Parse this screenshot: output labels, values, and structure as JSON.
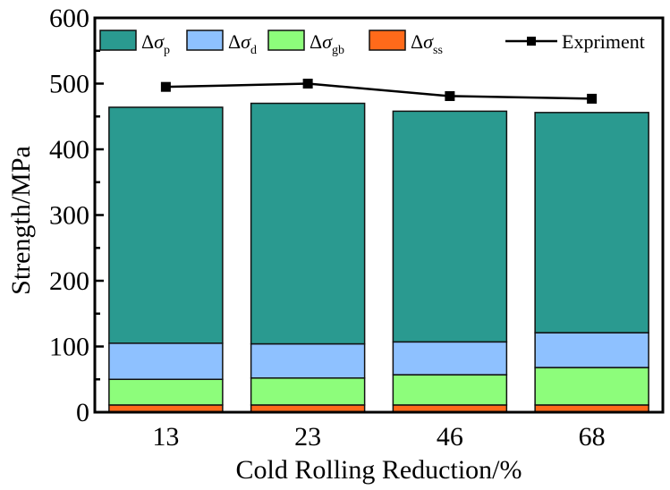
{
  "chart_data": {
    "type": "bar",
    "stacked": true,
    "title": "",
    "xlabel": "Cold Rolling Reduction/%",
    "ylabel": "Strength/MPa",
    "ylim": [
      0,
      600
    ],
    "yticks": [
      0,
      100,
      200,
      300,
      400,
      500,
      600
    ],
    "yticks_minor_step": 50,
    "categories": [
      "13",
      "23",
      "46",
      "68"
    ],
    "series": [
      {
        "name": "Δσss",
        "symbol": "Δσ",
        "sub": "ss",
        "color": "#ff6a1a",
        "values": [
          11,
          11,
          11,
          11
        ]
      },
      {
        "name": "Δσgb",
        "symbol": "Δσ",
        "sub": "gb",
        "color": "#8dfd7b",
        "values": [
          39,
          41,
          46,
          57
        ]
      },
      {
        "name": "Δσd",
        "symbol": "Δσ",
        "sub": "d",
        "color": "#8ec1ff",
        "values": [
          55,
          52,
          50,
          53
        ]
      },
      {
        "name": "Δσp",
        "symbol": "Δσ",
        "sub": "p",
        "color": "#2a9a90",
        "values": [
          359,
          366,
          351,
          335
        ]
      }
    ],
    "line_series": {
      "name": "Expriment",
      "color": "#000000",
      "marker": "square",
      "values": [
        495,
        500,
        481,
        477
      ]
    },
    "legend": {
      "placement": "top",
      "order": [
        "Δσp",
        "Δσd",
        "Δσgb",
        "Δσss",
        "Expriment"
      ]
    },
    "grid": false
  }
}
